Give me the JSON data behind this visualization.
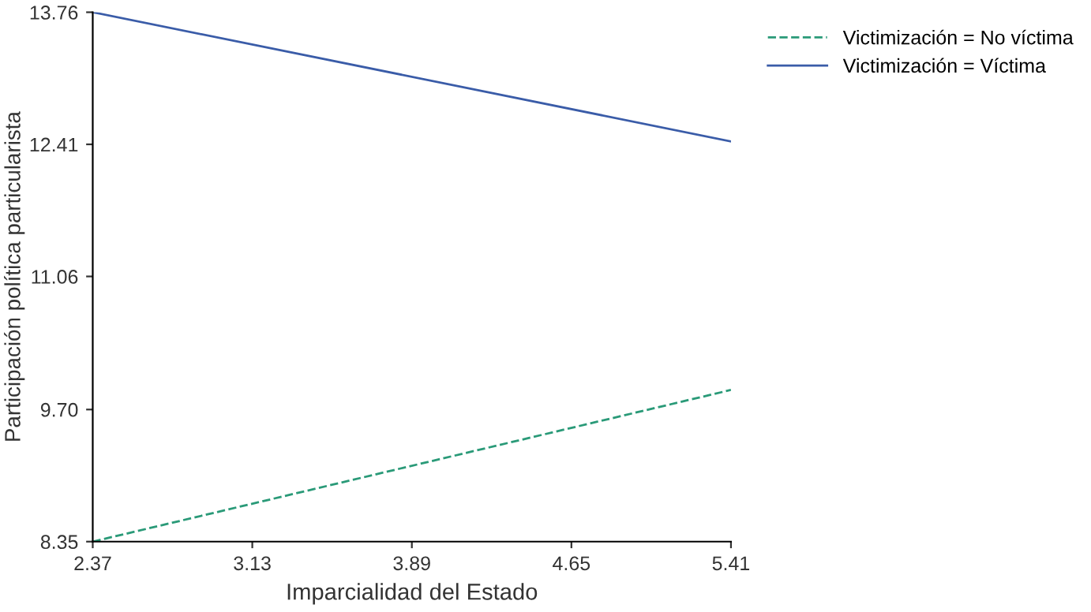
{
  "chart_data": {
    "type": "line",
    "xlabel": "Imparcialidad del Estado",
    "ylabel": "Participación política particularista",
    "x": [
      2.37,
      5.41
    ],
    "series": [
      {
        "name": "Victimización = No víctima",
        "color": "#2a9a78",
        "values": [
          8.35,
          9.9
        ],
        "line_style": "dashed"
      },
      {
        "name": "Victimización = Víctima",
        "color": "#3a5ca8",
        "values": [
          13.76,
          12.44
        ],
        "line_style": "solid"
      }
    ],
    "xlim": [
      2.37,
      5.41
    ],
    "xticks": [
      2.37,
      3.13,
      3.89,
      4.65,
      5.41
    ],
    "ylim": [
      8.35,
      13.76
    ],
    "yticks": [
      {
        "value": 8.35,
        "label": "8.35"
      },
      {
        "value": 9.7,
        "label": "9.70"
      },
      {
        "value": 11.06,
        "label": "11.06"
      },
      {
        "value": 12.41,
        "label": "12.41"
      },
      {
        "value": 13.76,
        "label": "13.76"
      }
    ],
    "grid": false,
    "legend": "top right",
    "marker": "none"
  }
}
